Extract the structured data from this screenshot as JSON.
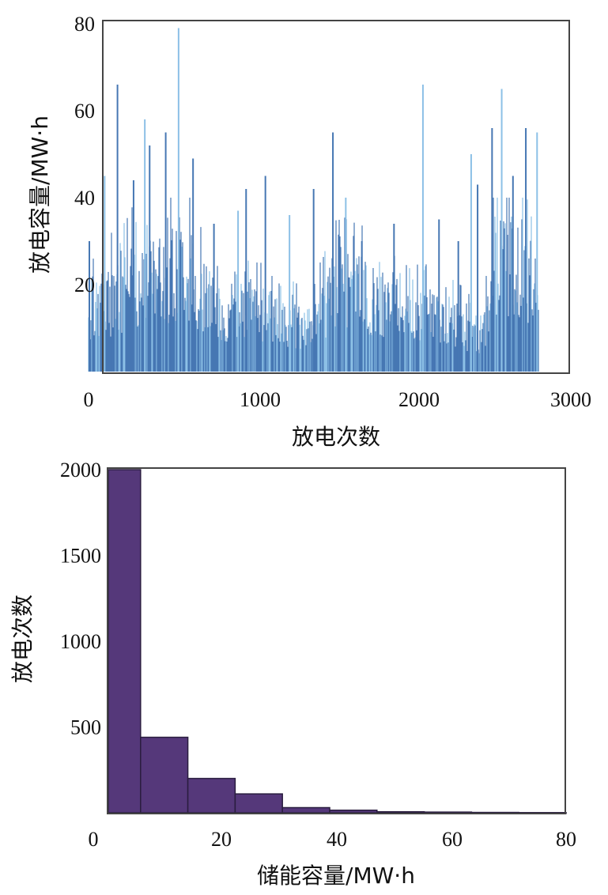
{
  "chart_data": [
    {
      "type": "line",
      "title": "",
      "xlabel": "放电次数",
      "ylabel": "放电容量/MW·h",
      "xlim": [
        0,
        3000
      ],
      "ylim": [
        0,
        80
      ],
      "xticks": [
        "0",
        "1000",
        "2000",
        "3000"
      ],
      "yticks": [
        "20",
        "40",
        "60",
        "80"
      ],
      "color": "#4677b3",
      "light_color": "#8cc0e6",
      "grid": false,
      "x_start": 0,
      "x_end": 2800,
      "peaks": [
        {
          "x": 5,
          "y": 30
        },
        {
          "x": 100,
          "y": 45
        },
        {
          "x": 180,
          "y": 66
        },
        {
          "x": 280,
          "y": 44
        },
        {
          "x": 350,
          "y": 58
        },
        {
          "x": 380,
          "y": 52
        },
        {
          "x": 480,
          "y": 55
        },
        {
          "x": 560,
          "y": 79
        },
        {
          "x": 650,
          "y": 49
        },
        {
          "x": 780,
          "y": 34
        },
        {
          "x": 930,
          "y": 37
        },
        {
          "x": 980,
          "y": 42
        },
        {
          "x": 1100,
          "y": 45
        },
        {
          "x": 1250,
          "y": 36
        },
        {
          "x": 1400,
          "y": 42
        },
        {
          "x": 1520,
          "y": 55
        },
        {
          "x": 1600,
          "y": 40
        },
        {
          "x": 1700,
          "y": 30
        },
        {
          "x": 1900,
          "y": 34
        },
        {
          "x": 2080,
          "y": 66
        },
        {
          "x": 2180,
          "y": 35
        },
        {
          "x": 2300,
          "y": 30
        },
        {
          "x": 2380,
          "y": 50
        },
        {
          "x": 2420,
          "y": 43
        },
        {
          "x": 2510,
          "y": 56
        },
        {
          "x": 2570,
          "y": 65
        },
        {
          "x": 2640,
          "y": 45
        },
        {
          "x": 2720,
          "y": 56
        },
        {
          "x": 2790,
          "y": 55
        }
      ],
      "level_profile": [
        {
          "x": 0,
          "y": 14
        },
        {
          "x": 300,
          "y": 22
        },
        {
          "x": 600,
          "y": 26
        },
        {
          "x": 850,
          "y": 12
        },
        {
          "x": 1000,
          "y": 16
        },
        {
          "x": 1380,
          "y": 10
        },
        {
          "x": 1550,
          "y": 22
        },
        {
          "x": 1800,
          "y": 18
        },
        {
          "x": 2100,
          "y": 15
        },
        {
          "x": 2300,
          "y": 12
        },
        {
          "x": 2450,
          "y": 8
        },
        {
          "x": 2550,
          "y": 30
        },
        {
          "x": 2800,
          "y": 22
        }
      ]
    },
    {
      "type": "bar",
      "title": "",
      "xlabel": "储能容量/MW·h",
      "ylabel": "放电次数",
      "xlim": [
        0,
        80
      ],
      "ylim": [
        0,
        2000
      ],
      "xticks": [
        "0",
        "20",
        "40",
        "60",
        "80"
      ],
      "yticks": [
        "500",
        "1000",
        "1500",
        "2000"
      ],
      "color": "#55387a",
      "grid": false,
      "bins": [
        {
          "from": 0,
          "to": 8,
          "value": 2000
        },
        {
          "from": 8,
          "to": 16,
          "value": 440
        },
        {
          "from": 16,
          "to": 24,
          "value": 200
        },
        {
          "from": 24,
          "to": 32,
          "value": 110
        },
        {
          "from": 32,
          "to": 40,
          "value": 30
        },
        {
          "from": 40,
          "to": 48,
          "value": 15
        },
        {
          "from": 48,
          "to": 56,
          "value": 6
        },
        {
          "from": 56,
          "to": 64,
          "value": 4
        },
        {
          "from": 64,
          "to": 72,
          "value": 2
        },
        {
          "from": 72,
          "to": 80,
          "value": 1
        }
      ]
    }
  ]
}
